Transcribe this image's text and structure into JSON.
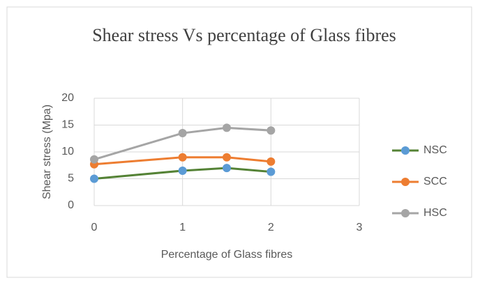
{
  "chart_data": {
    "type": "line",
    "title": "Shear stress Vs percentage of Glass fibres",
    "xlabel": "Percentage of Glass fibres",
    "ylabel": "Shear stress (Mpa)",
    "x": [
      0,
      1,
      1.5,
      2
    ],
    "series": [
      {
        "name": "NSC",
        "color": "#548235",
        "marker_color": "#5b9bd5",
        "values": [
          5,
          6.5,
          7,
          6.3
        ]
      },
      {
        "name": "SCC",
        "color": "#ed7d31",
        "marker_color": "#ed7d31",
        "values": [
          7.7,
          9,
          9,
          8.2
        ]
      },
      {
        "name": "HSC",
        "color": "#a5a5a5",
        "marker_color": "#a5a5a5",
        "values": [
          8.6,
          13.5,
          14.5,
          14
        ]
      }
    ],
    "xlim": [
      0,
      3
    ],
    "xticks": [
      0,
      1,
      2,
      3
    ],
    "ylim": [
      0,
      20
    ],
    "yticks": [
      0,
      5,
      10,
      15,
      20
    ],
    "grid": true,
    "legend": "right"
  }
}
